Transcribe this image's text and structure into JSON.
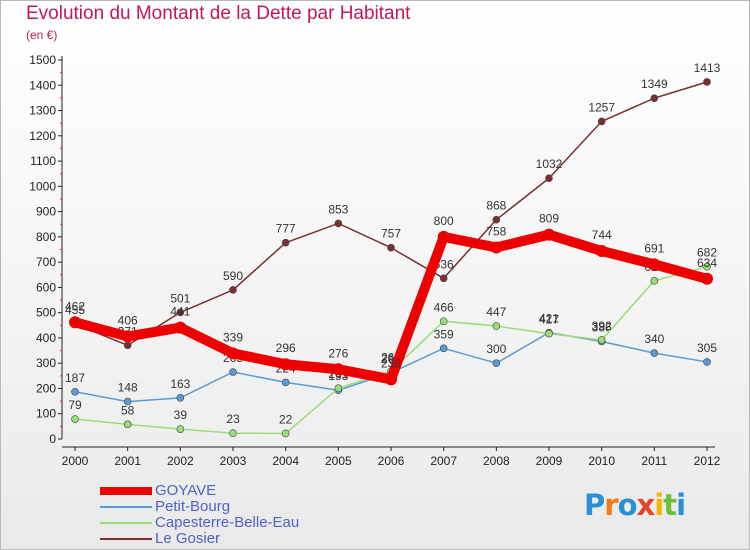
{
  "header": {
    "title": "Evolution du Montant de la Dette par Habitant",
    "subtitle": "(en €)"
  },
  "logo": {
    "text": "Proxiti",
    "letter_colors": [
      "#2a8fd4",
      "#f07a1a",
      "#2a8fd4",
      "#e0452b",
      "#f4b400",
      "#6bbf3b",
      "#2a8fd4"
    ]
  },
  "chart_data": {
    "type": "line",
    "title": "Evolution du Montant de la Dette par Habitant",
    "subtitle": "(en €)",
    "x": [
      "2000",
      "2001",
      "2002",
      "2003",
      "2004",
      "2005",
      "2006",
      "2007",
      "2008",
      "2009",
      "2010",
      "2011",
      "2012"
    ],
    "ylim": [
      0,
      1500
    ],
    "yticks": [
      0,
      100,
      200,
      300,
      400,
      500,
      600,
      700,
      800,
      900,
      1000,
      1100,
      1200,
      1300,
      1400,
      1500
    ],
    "grid": false,
    "legend_position": "bottom-left",
    "series": [
      {
        "name": "GOYAVE",
        "color": "#ee0000",
        "emphasis": "thick",
        "values": [
          462,
          406,
          441,
          339,
          296,
          276,
          236,
          800,
          758,
          809,
          744,
          691,
          634
        ]
      },
      {
        "name": "Petit-Bourg",
        "color": "#5b9bd5",
        "emphasis": "normal",
        "values": [
          187,
          148,
          163,
          265,
          224,
          193,
          262,
          359,
          300,
          421,
          386,
          340,
          305
        ]
      },
      {
        "name": "Capesterre-Belle-Eau",
        "color": "#99dd77",
        "emphasis": "normal",
        "values": [
          79,
          58,
          39,
          23,
          22,
          201,
          268,
          466,
          447,
          417,
          392,
          626,
          682
        ]
      },
      {
        "name": "Le Gosier",
        "color": "#7a3030",
        "emphasis": "normal",
        "values": [
          455,
          371,
          501,
          590,
          777,
          853,
          757,
          636,
          868,
          1032,
          1257,
          1349,
          1413
        ]
      }
    ]
  }
}
